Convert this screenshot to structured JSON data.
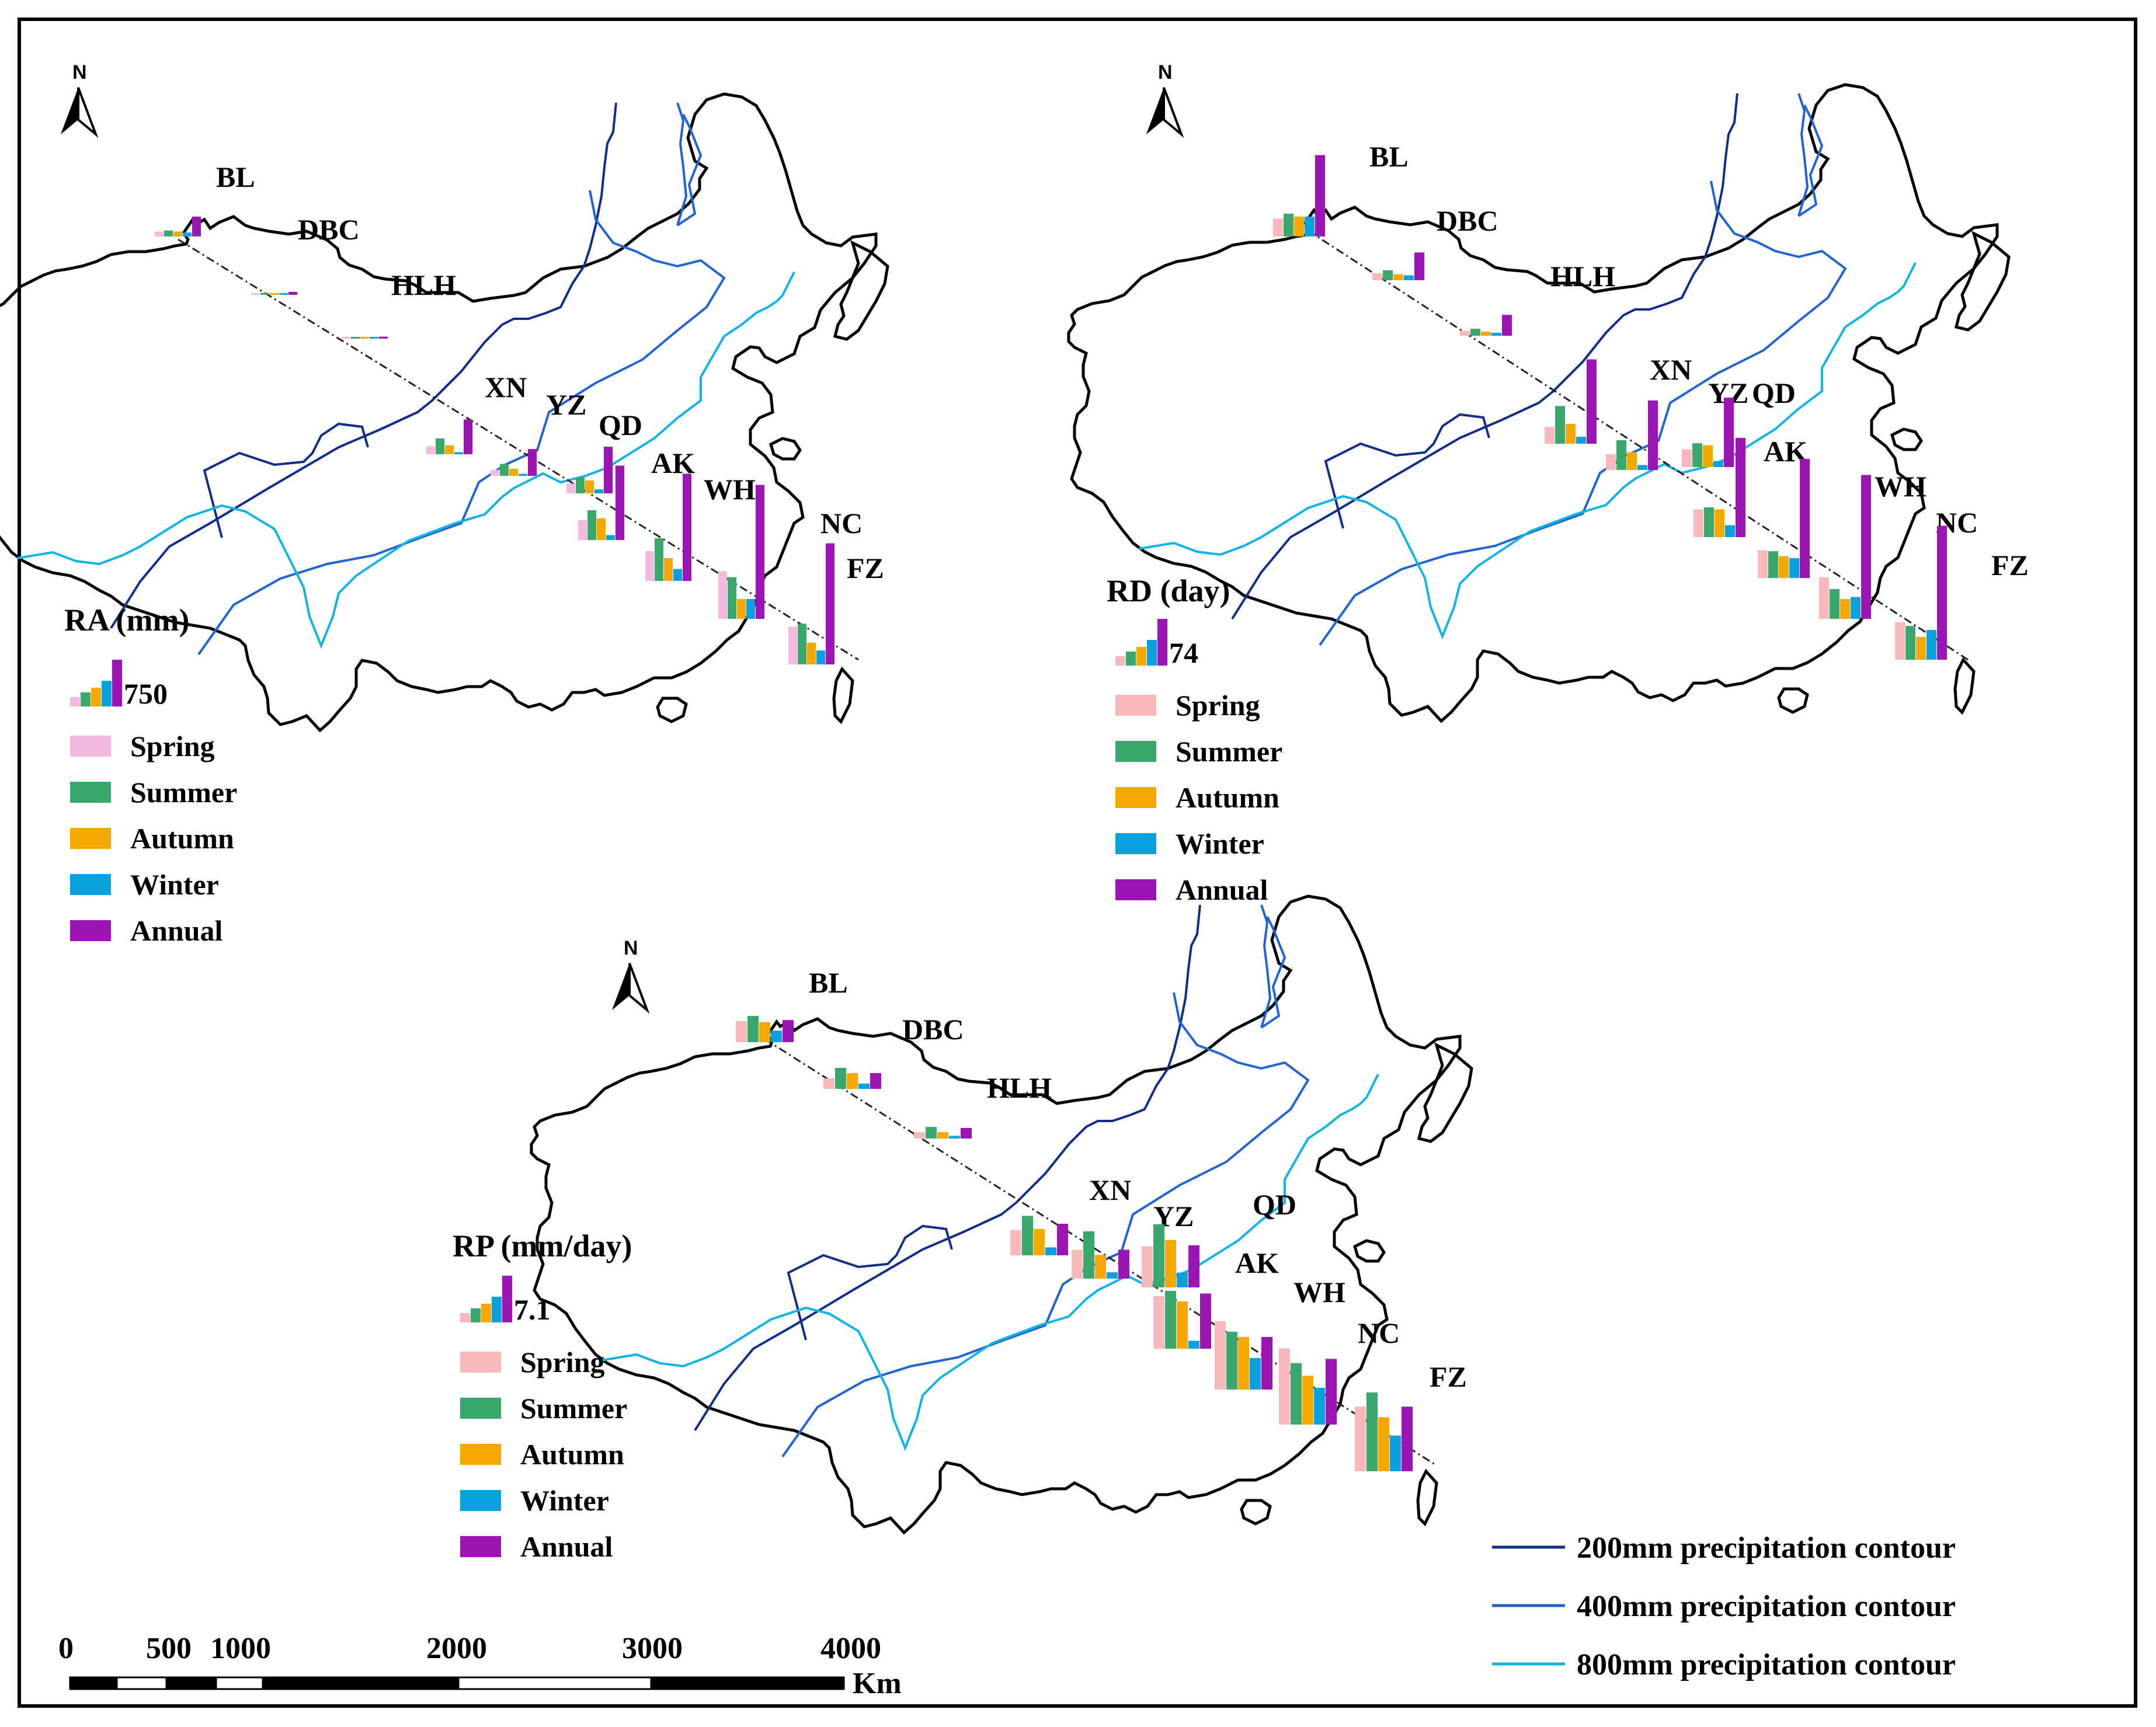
{
  "north_label": "N",
  "seasons": [
    {
      "key": "spring",
      "label": "Spring"
    },
    {
      "key": "summer",
      "label": "Summer"
    },
    {
      "key": "autumn",
      "label": "Autumn"
    },
    {
      "key": "winter",
      "label": "Winter"
    },
    {
      "key": "annual",
      "label": "Annual"
    }
  ],
  "panels": [
    {
      "id": "RA",
      "title": "RA (mm)",
      "reference_value": "750",
      "colors": {
        "spring": "#f5b8de",
        "summer": "#3aa86c",
        "autumn": "#f5a800",
        "winter": "#0aa0dd",
        "annual": "#9b14b4"
      },
      "stations": [
        {
          "code": "BL",
          "values": [
            0.05,
            0.06,
            0.05,
            0.04,
            0.2
          ]
        },
        {
          "code": "DBC",
          "values": [
            0.0,
            0.02,
            0.0,
            0.0,
            0.03
          ]
        },
        {
          "code": "HLH",
          "values": [
            0.0,
            0.01,
            0.0,
            0.0,
            0.02
          ]
        },
        {
          "code": "XN",
          "values": [
            0.08,
            0.16,
            0.09,
            0.02,
            0.35
          ]
        },
        {
          "code": "YZ",
          "values": [
            0.06,
            0.12,
            0.07,
            0.02,
            0.27
          ]
        },
        {
          "code": "QD",
          "values": [
            0.1,
            0.16,
            0.13,
            0.04,
            0.47
          ]
        },
        {
          "code": "AK",
          "values": [
            0.2,
            0.3,
            0.22,
            0.05,
            0.75
          ]
        },
        {
          "code": "WH",
          "values": [
            0.3,
            0.43,
            0.23,
            0.12,
            1.08
          ]
        },
        {
          "code": "NC",
          "values": [
            0.48,
            0.42,
            0.2,
            0.2,
            1.35
          ]
        },
        {
          "code": "FZ",
          "values": [
            0.38,
            0.41,
            0.22,
            0.14,
            1.22
          ]
        }
      ]
    },
    {
      "id": "RD",
      "title": "RD (day)",
      "reference_value": "74",
      "colors": {
        "spring": "#f7b9b9",
        "summer": "#3aa86c",
        "autumn": "#f5a800",
        "winter": "#0aa0dd",
        "annual": "#9b14b4"
      },
      "stations": [
        {
          "code": "BL",
          "values": [
            0.18,
            0.23,
            0.2,
            0.2,
            0.82
          ]
        },
        {
          "code": "DBC",
          "values": [
            0.07,
            0.1,
            0.06,
            0.05,
            0.28
          ]
        },
        {
          "code": "HLH",
          "values": [
            0.05,
            0.07,
            0.04,
            0.03,
            0.21
          ]
        },
        {
          "code": "XN",
          "values": [
            0.17,
            0.38,
            0.2,
            0.07,
            0.85
          ]
        },
        {
          "code": "YZ",
          "values": [
            0.16,
            0.3,
            0.18,
            0.05,
            0.7
          ]
        },
        {
          "code": "QD",
          "values": [
            0.18,
            0.24,
            0.22,
            0.06,
            0.7
          ]
        },
        {
          "code": "AK",
          "values": [
            0.28,
            0.3,
            0.28,
            0.12,
            1.0
          ]
        },
        {
          "code": "WH",
          "values": [
            0.28,
            0.27,
            0.22,
            0.2,
            1.2
          ]
        },
        {
          "code": "NC",
          "values": [
            0.42,
            0.3,
            0.2,
            0.22,
            1.45
          ]
        },
        {
          "code": "FZ",
          "values": [
            0.38,
            0.34,
            0.23,
            0.3,
            1.35
          ]
        }
      ]
    },
    {
      "id": "RP",
      "title": "RP (mm/day)",
      "reference_value": "7.1",
      "colors": {
        "spring": "#f7b9b9",
        "summer": "#3aa86c",
        "autumn": "#f5a800",
        "winter": "#0aa0dd",
        "annual": "#9b14b4"
      },
      "stations": [
        {
          "code": "BL",
          "values": [
            0.4,
            0.5,
            0.38,
            0.22,
            0.42
          ]
        },
        {
          "code": "DBC",
          "values": [
            0.2,
            0.4,
            0.3,
            0.1,
            0.3
          ]
        },
        {
          "code": "HLH",
          "values": [
            0.12,
            0.22,
            0.12,
            0.05,
            0.2
          ]
        },
        {
          "code": "XN",
          "values": [
            0.48,
            0.75,
            0.5,
            0.15,
            0.6
          ]
        },
        {
          "code": "YZ",
          "values": [
            0.55,
            0.9,
            0.45,
            0.12,
            0.55
          ]
        },
        {
          "code": "QD",
          "values": [
            0.78,
            1.2,
            0.9,
            0.28,
            0.8
          ]
        },
        {
          "code": "AK",
          "values": [
            1.0,
            1.1,
            0.9,
            0.15,
            1.05
          ]
        },
        {
          "code": "WH",
          "values": [
            1.3,
            1.1,
            1.0,
            0.6,
            1.0
          ]
        },
        {
          "code": "NC",
          "values": [
            1.45,
            1.17,
            0.93,
            0.7,
            1.25
          ]
        },
        {
          "code": "FZ",
          "values": [
            1.23,
            1.5,
            1.03,
            0.68,
            1.23
          ]
        }
      ]
    }
  ],
  "scale_bar": {
    "ticks": [
      "0",
      "500",
      "1000",
      "2000",
      "3000",
      "4000"
    ],
    "unit": "Km"
  },
  "contours": [
    {
      "label": "200mm precipitation contour",
      "color": "#102d88"
    },
    {
      "label": "400mm precipitation contour",
      "color": "#1f64cf"
    },
    {
      "label": "800mm precipitation contour",
      "color": "#10b4e4"
    }
  ]
}
